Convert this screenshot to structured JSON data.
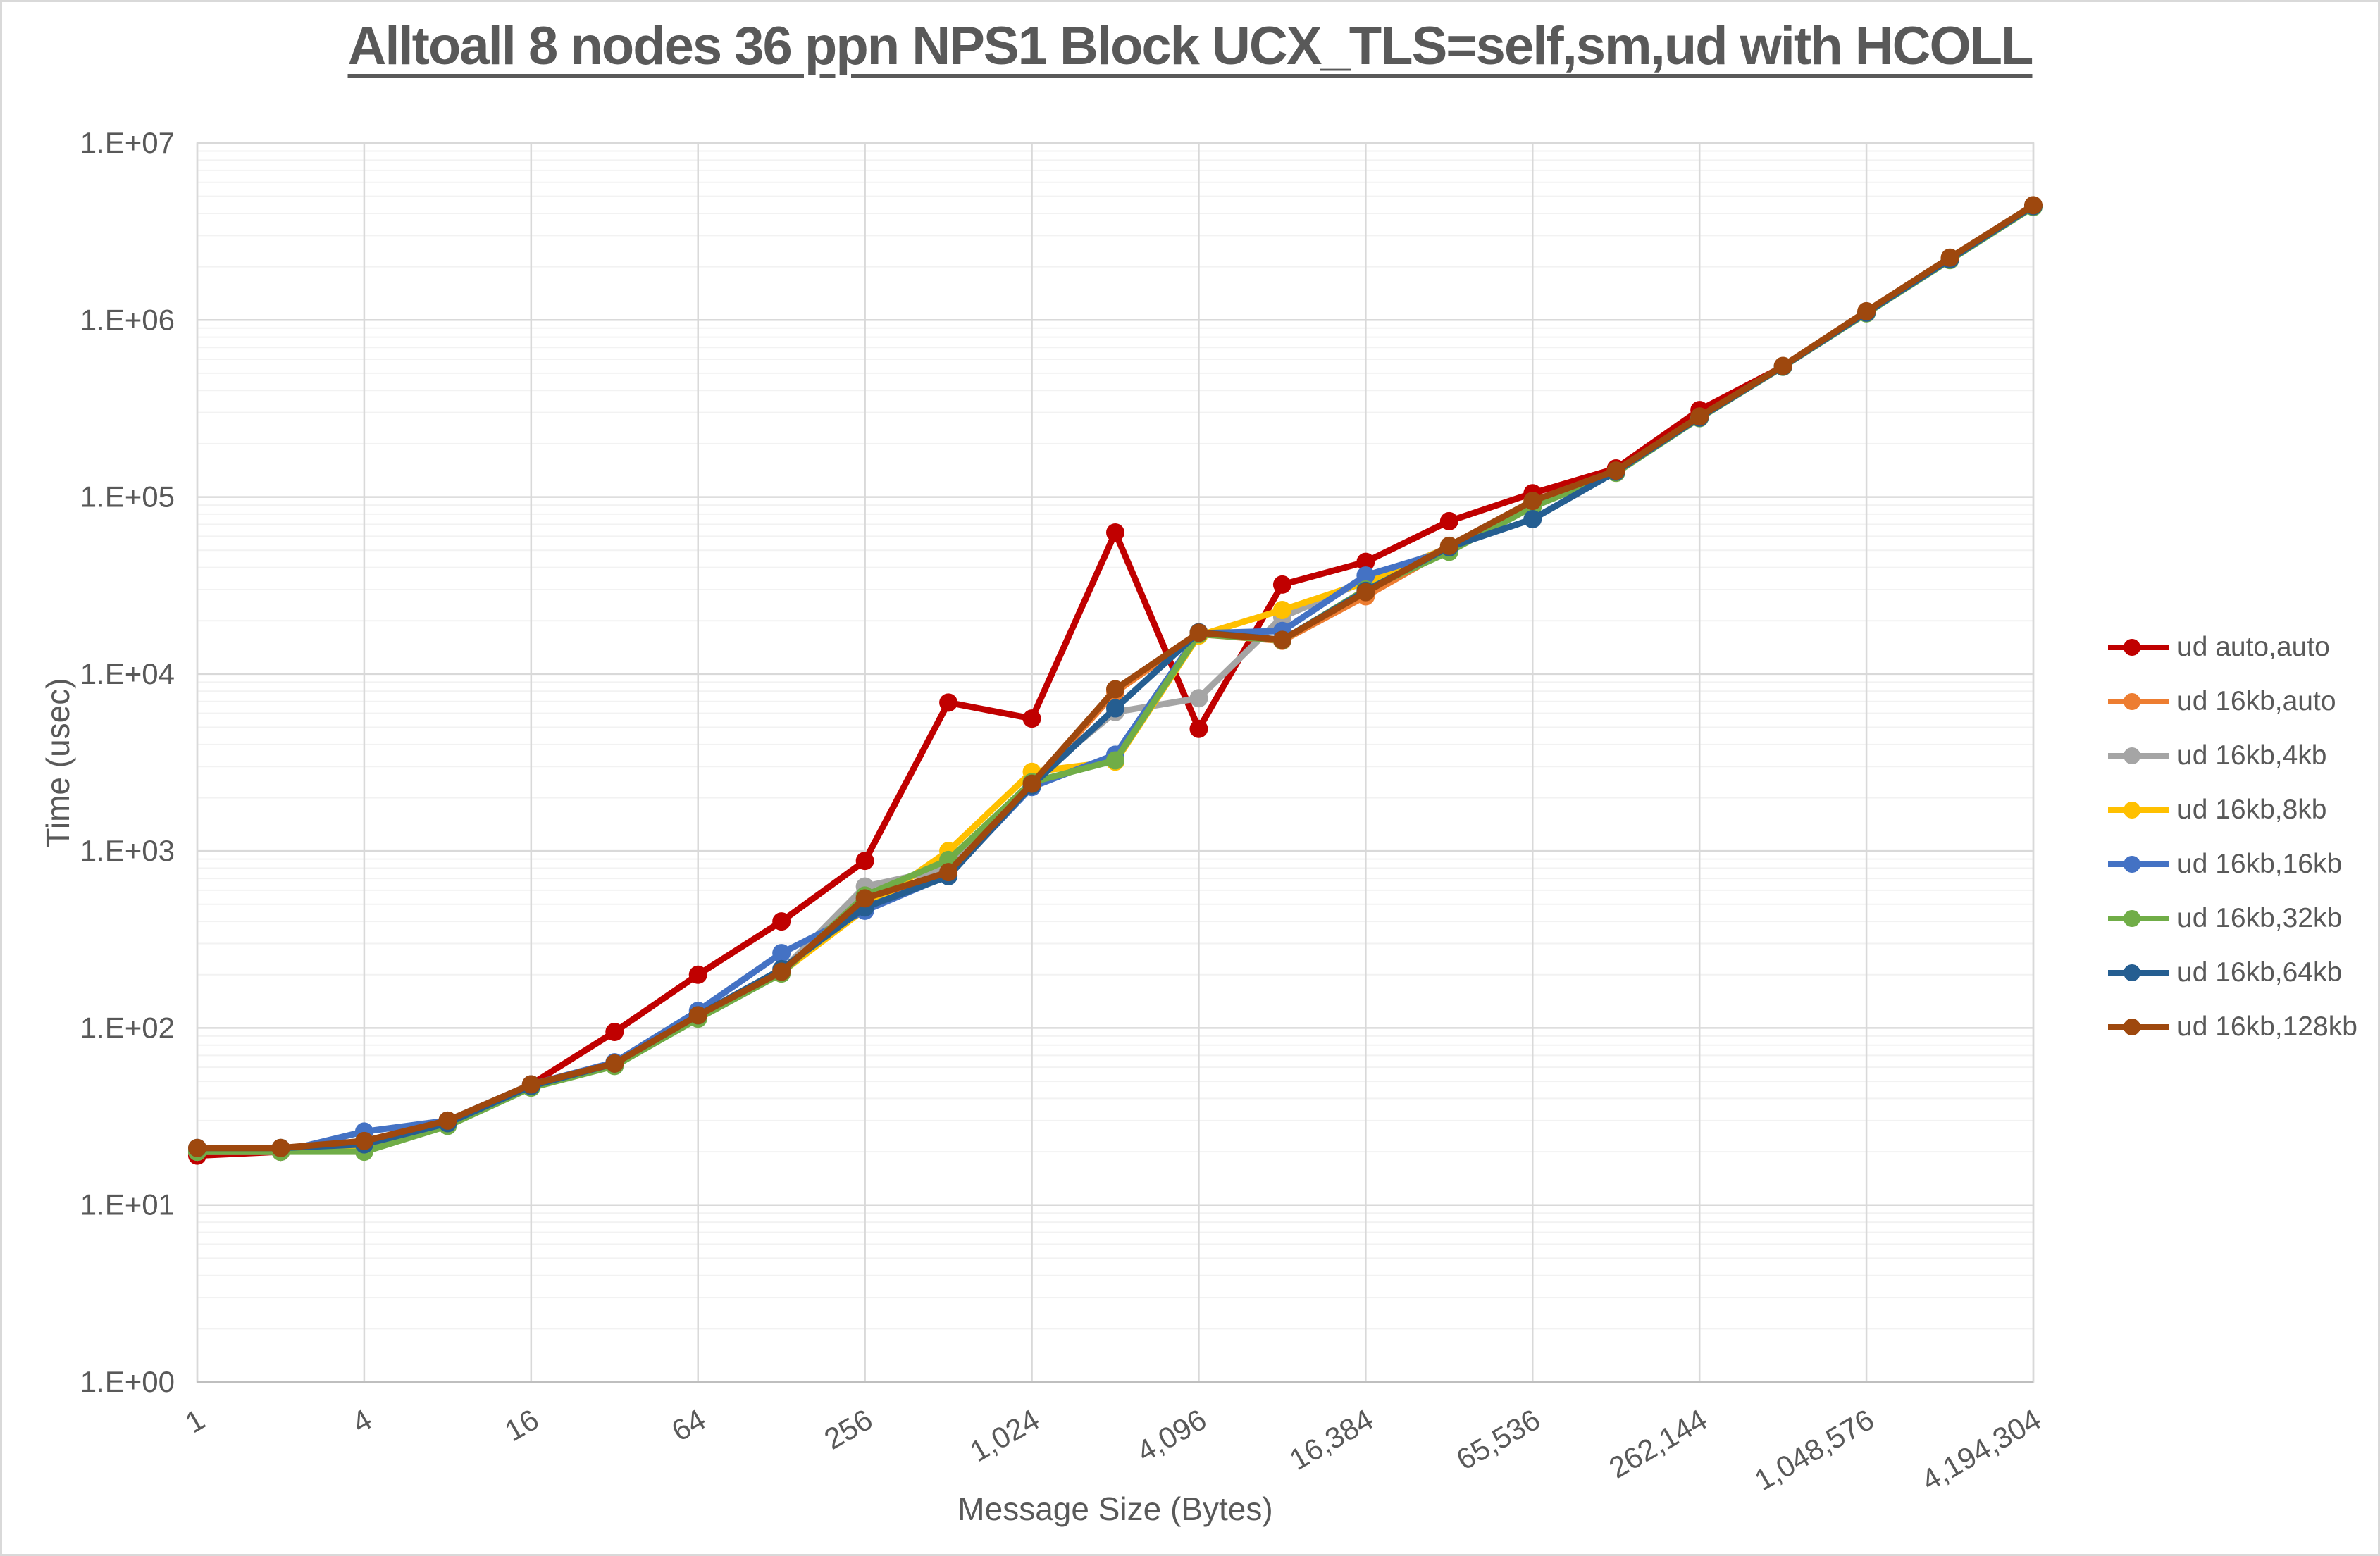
{
  "title": "Alltoall 8 nodes 36 ppn NPS1 Block UCX_TLS=self,sm,ud with HCOLL",
  "y_axis": {
    "label": "Time (usec)",
    "ticks": [
      "1.E+00",
      "1.E+01",
      "1.E+02",
      "1.E+03",
      "1.E+04",
      "1.E+05",
      "1.E+06",
      "1.E+07"
    ]
  },
  "x_axis": {
    "label": "Message Size (Bytes)",
    "ticks": [
      "1",
      "4",
      "16",
      "64",
      "256",
      "1,024",
      "4,096",
      "16,384",
      "65,536",
      "262,144",
      "1,048,576",
      "4,194,304"
    ]
  },
  "style": {
    "text_color": "#595959",
    "major_grid_color": "#d9d9d9",
    "minor_grid_color": "#f2f2f2",
    "axis_line_color": "#bfbfbf",
    "plot_border_color": "#d9d9d9"
  },
  "chart_data": {
    "type": "line",
    "title": "Alltoall 8 nodes 36 ppn NPS1 Block UCX_TLS=self,sm,ud with HCOLL",
    "xlabel": "Message Size (Bytes)",
    "ylabel": "Time (usec)",
    "x_scale": "log2",
    "y_scale": "log10",
    "ylim": [
      1,
      10000000
    ],
    "grid": "major+minor-horizontal, major-vertical",
    "legend_position": "right",
    "x": [
      1,
      2,
      4,
      8,
      16,
      32,
      64,
      128,
      256,
      512,
      1024,
      2048,
      4096,
      8192,
      16384,
      32768,
      65536,
      131072,
      262144,
      524288,
      1048576,
      2097152,
      4194304
    ],
    "x_tick_values": [
      1,
      4,
      16,
      64,
      256,
      1024,
      4096,
      16384,
      65536,
      262144,
      1048576,
      4194304
    ],
    "series": [
      {
        "name": "ud auto,auto",
        "color": "#c00000",
        "values": [
          19,
          20,
          22,
          29,
          48,
          95,
          200,
          400,
          880,
          6900,
          5600,
          63000,
          4900,
          32000,
          43000,
          73000,
          105000,
          145000,
          310000,
          545000,
          1100000,
          2200000,
          4400000
        ]
      },
      {
        "name": "ud 16kb,auto",
        "color": "#ed7d31",
        "values": [
          20,
          20,
          22,
          29,
          47,
          62,
          115,
          205,
          520,
          780,
          2350,
          7900,
          16800,
          15400,
          27500,
          51000,
          92000,
          139000,
          281000,
          545000,
          1100000,
          2200000,
          4400000
        ]
      },
      {
        "name": "ud 16kb,4kb",
        "color": "#a5a5a5",
        "values": [
          20,
          20,
          22,
          29,
          47,
          63,
          116,
          210,
          630,
          800,
          2500,
          6100,
          7300,
          21000,
          33500,
          52000,
          93000,
          140000,
          282000,
          546000,
          1105000,
          2210000,
          4410000
        ]
      },
      {
        "name": "ud 16kb,8kb",
        "color": "#ffc000",
        "values": [
          20,
          20,
          21,
          29,
          47,
          62,
          114,
          206,
          470,
          1000,
          2800,
          3200,
          16500,
          23000,
          33000,
          52000,
          94000,
          140000,
          282000,
          546000,
          1100000,
          2200000,
          4400000
        ]
      },
      {
        "name": "ud 16kb,16kb",
        "color": "#4472c4",
        "values": [
          20,
          20,
          26,
          30,
          48,
          64,
          125,
          265,
          460,
          730,
          2300,
          3500,
          17000,
          17500,
          36000,
          50000,
          90000,
          138000,
          280000,
          545000,
          1095000,
          2190000,
          4380000
        ]
      },
      {
        "name": "ud 16kb,32kb",
        "color": "#70ad47",
        "values": [
          20,
          20,
          20,
          28,
          46,
          61,
          113,
          203,
          560,
          890,
          2450,
          3250,
          16800,
          15500,
          30000,
          49000,
          88000,
          137000,
          279000,
          544000,
          1090000,
          2180000,
          4350000
        ]
      },
      {
        "name": "ud 16kb,64kb",
        "color": "#255e91",
        "values": [
          21,
          21,
          22,
          29,
          47,
          63,
          118,
          215,
          480,
          720,
          2350,
          6400,
          17200,
          15600,
          29500,
          52000,
          75000,
          139000,
          281000,
          546000,
          1100000,
          2200000,
          4400000
        ]
      },
      {
        "name": "ud 16kb,128kb",
        "color": "#9e480e",
        "values": [
          21,
          21,
          23,
          30,
          48,
          63,
          118,
          208,
          540,
          760,
          2400,
          8200,
          17100,
          15600,
          29000,
          53000,
          95000,
          141000,
          285000,
          550000,
          1120000,
          2250000,
          4450000
        ]
      }
    ]
  }
}
